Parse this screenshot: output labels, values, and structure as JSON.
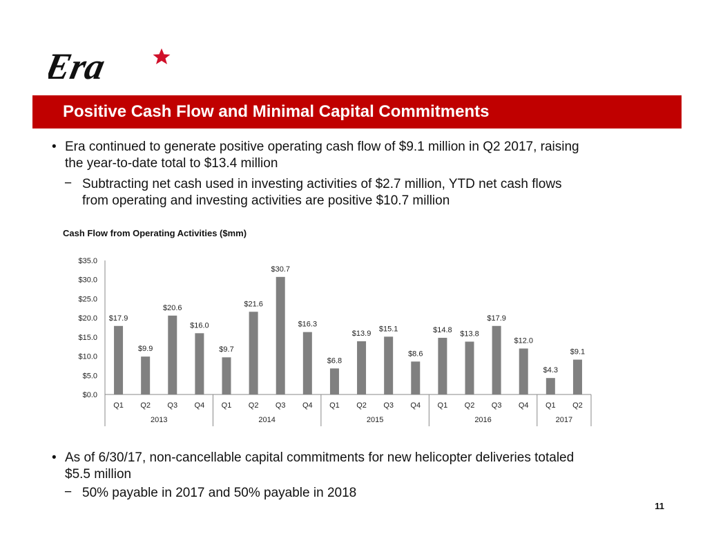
{
  "logo": {
    "text": "Era",
    "star_color": "#d0102a"
  },
  "header": {
    "title": "Positive Cash Flow and Minimal Capital Commitments",
    "bar_color": "#c00000"
  },
  "bullets": [
    {
      "line1": "Era continued to generate positive operating cash flow of $9.1 million in Q2 2017, raising",
      "line2": "the year-to-date total to $13.4 million",
      "sub": {
        "line1": "Subtracting net cash used in investing activities of $2.7 million, YTD net cash flows",
        "line2": "from operating and investing activities are positive $10.7 million"
      }
    },
    {
      "line1": "As of 6/30/17, non-cancellable capital commitments for new helicopter deliveries totaled",
      "line2": "$5.5 million",
      "sub": {
        "line1": "50% payable in 2017 and 50% payable in 2018"
      }
    }
  ],
  "symbols": {
    "bullet": "•",
    "dash": "−"
  },
  "page_number": "11",
  "chart_data": {
    "type": "bar",
    "title": "Cash Flow from Operating Activities ($mm)",
    "categories": [
      "Q1",
      "Q2",
      "Q3",
      "Q4",
      "Q1",
      "Q2",
      "Q3",
      "Q4",
      "Q1",
      "Q2",
      "Q3",
      "Q4",
      "Q1",
      "Q2",
      "Q3",
      "Q4",
      "Q1",
      "Q2"
    ],
    "years": [
      {
        "label": "2013",
        "count": 4
      },
      {
        "label": "2014",
        "count": 4
      },
      {
        "label": "2015",
        "count": 4
      },
      {
        "label": "2016",
        "count": 4
      },
      {
        "label": "2017",
        "count": 2
      }
    ],
    "values": [
      17.9,
      9.9,
      20.6,
      16.0,
      9.7,
      21.6,
      30.7,
      16.3,
      6.8,
      13.9,
      15.1,
      8.6,
      14.8,
      13.8,
      17.9,
      12.0,
      4.3,
      9.1
    ],
    "data_labels": [
      "$17.9",
      "$9.9",
      "$20.6",
      "$16.0",
      "$9.7",
      "$21.6",
      "$30.7",
      "$16.3",
      "$6.8",
      "$13.9",
      "$15.1",
      "$8.6",
      "$14.8",
      "$13.8",
      "$17.9",
      "$12.0",
      "$4.3",
      "$9.1"
    ],
    "yticks": [
      "$0.0",
      "$5.0",
      "$10.0",
      "$15.0",
      "$20.0",
      "$25.0",
      "$30.0",
      "$35.0"
    ],
    "ylim": [
      0,
      35
    ],
    "xlabel": "",
    "ylabel": "",
    "bar_color": "#808080",
    "grid": false
  }
}
